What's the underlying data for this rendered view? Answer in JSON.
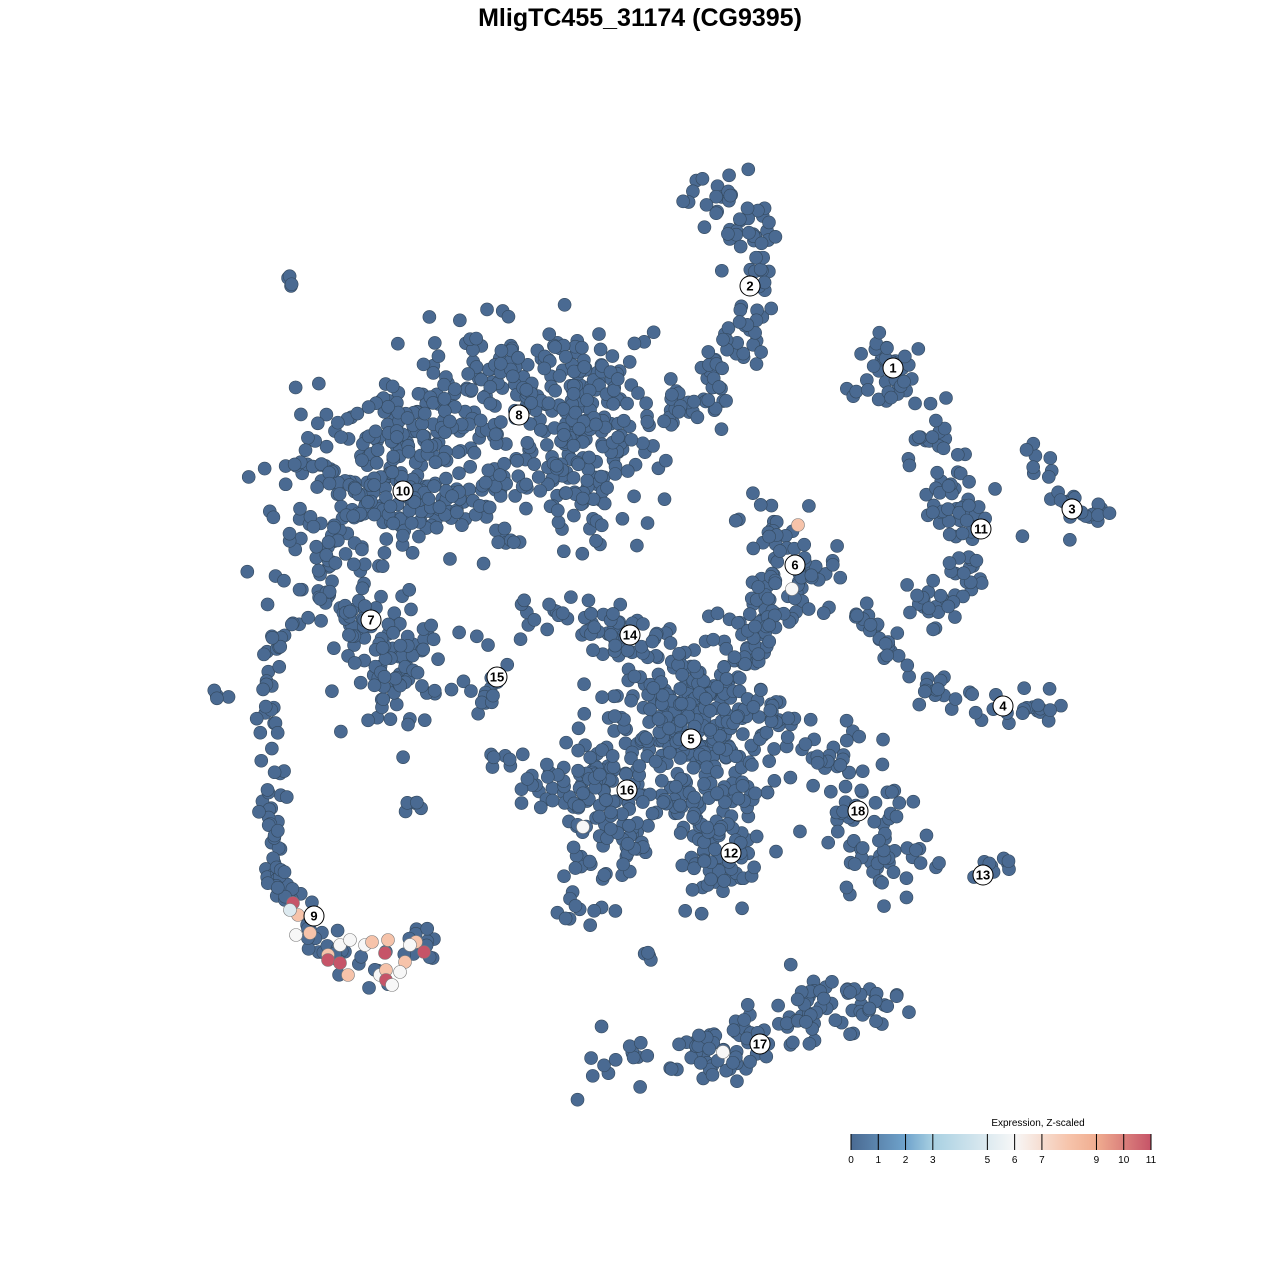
{
  "chart_data": {
    "type": "scatter",
    "title": "MligTC455_31174 (CG9395)",
    "xlabel": "",
    "ylabel": "",
    "grid": false,
    "legend": {
      "title": "Expression, Z-scaled",
      "placement": "bottom-right",
      "ticks": [
        0,
        1,
        2,
        3,
        5,
        6,
        7,
        9,
        10,
        11
      ],
      "range": [
        0,
        11
      ],
      "colors": {
        "0": "#4a6a92",
        "2": "#6fa3cc",
        "3": "#a8d0e2",
        "6": "#f7f7f7",
        "8": "#f6c3aa",
        "9": "#f0ad90",
        "11": "#c65468"
      }
    },
    "base_color": "#4a6a92",
    "clusters": [
      {
        "label": "1",
        "label_pos": [
          25.3,
          27.2
        ],
        "n": 40,
        "spread": 1.8,
        "path": [
          [
            23.5,
            28.5
          ],
          [
            25,
            27
          ],
          [
            26.5,
            26.5
          ],
          [
            24,
            26
          ]
        ]
      },
      {
        "label": "2",
        "label_pos": [
          11,
          35.4
        ],
        "n": 120,
        "spread": 1.4,
        "path": [
          [
            5,
            44.5
          ],
          [
            10,
            43
          ],
          [
            12,
            39
          ],
          [
            11,
            34
          ],
          [
            9,
            29
          ],
          [
            7,
            25
          ],
          [
            2.5,
            22.5
          ]
        ]
      },
      {
        "label": "3",
        "label_pos": [
          43.2,
          13.1
        ],
        "n": 30,
        "spread": 0.9,
        "path": [
          [
            39,
            19
          ],
          [
            41,
            16.5
          ],
          [
            43.5,
            13
          ],
          [
            46.5,
            12.2
          ]
        ]
      },
      {
        "label": "4",
        "label_pos": [
          36.3,
          -6.6
        ],
        "n": 60,
        "spread": 0.9,
        "path": [
          [
            22,
            3
          ],
          [
            24.5,
            -1
          ],
          [
            30,
            -5
          ],
          [
            36,
            -7
          ],
          [
            41.5,
            -6.8
          ]
        ]
      },
      {
        "label": "5",
        "label_pos": [
          5.1,
          -9.9
        ],
        "n": 320,
        "spread": 4,
        "path": [
          [
            3,
            -6
          ],
          [
            5,
            -9
          ],
          [
            7,
            -12
          ]
        ]
      },
      {
        "label": "6",
        "label_pos": [
          15.5,
          7.5
        ],
        "n": 75,
        "spread": 1.8,
        "path": [
          [
            12,
            11.5
          ],
          [
            15,
            10
          ],
          [
            18,
            7.5
          ],
          [
            15,
            5
          ],
          [
            11,
            4
          ],
          [
            12,
            0
          ]
        ]
      },
      {
        "label": "7",
        "label_pos": [
          -26.9,
          2
        ],
        "n": 160,
        "spread": 2.5,
        "path": [
          [
            -34,
            8
          ],
          [
            -29,
            4
          ],
          [
            -25,
            -1
          ],
          [
            -24,
            -6
          ]
        ]
      },
      {
        "label": "8",
        "label_pos": [
          -12.1,
          22.5
        ],
        "n": 460,
        "spread": 3.2,
        "path": [
          [
            -33,
            15
          ],
          [
            -24,
            20
          ],
          [
            -16,
            24.5
          ],
          [
            -8,
            27
          ],
          [
            -4,
            22
          ],
          [
            -5,
            13
          ]
        ]
      },
      {
        "label": "9",
        "label_pos": [
          -32.6,
          -27.6
        ],
        "n": 40,
        "spread": 1.1,
        "path": [
          [
            -35,
            -27
          ],
          [
            -31,
            -31
          ],
          [
            -26,
            -33
          ],
          [
            -21.5,
            -30
          ]
        ]
      },
      {
        "label": "10",
        "label_pos": [
          -23.7,
          14.9
        ],
        "n": 160,
        "spread": 2.5,
        "path": [
          [
            -29,
            12
          ],
          [
            -20,
            14
          ],
          [
            -8,
            16
          ]
        ]
      },
      {
        "label": "11",
        "label_pos": [
          34.1,
          11.1
        ],
        "n": 95,
        "spread": 1.4,
        "path": [
          [
            29,
            20.5
          ],
          [
            31,
            17
          ],
          [
            30,
            13
          ],
          [
            33.5,
            11
          ],
          [
            32,
            7
          ],
          [
            30.5,
            4
          ],
          [
            27.5,
            2
          ]
        ]
      },
      {
        "label": "12",
        "label_pos": [
          9.1,
          -21.3
        ],
        "n": 80,
        "spread": 2,
        "path": [
          [
            6,
            -17
          ],
          [
            9,
            -21
          ],
          [
            7,
            -24
          ]
        ]
      },
      {
        "label": "13",
        "label_pos": [
          34.3,
          -23.5
        ],
        "n": 12,
        "spread": 0.6,
        "path": [
          [
            32,
            -24
          ],
          [
            37,
            -22
          ]
        ]
      },
      {
        "label": "14",
        "label_pos": [
          -1,
          0.5
        ],
        "n": 55,
        "spread": 1.2,
        "path": [
          [
            -11,
            3
          ],
          [
            -4,
            2
          ],
          [
            -1.5,
            0
          ],
          [
            2.5,
            0
          ]
        ]
      },
      {
        "label": "15",
        "label_pos": [
          -14.3,
          -3.7
        ],
        "n": 16,
        "spread": 0.6,
        "path": [
          [
            -18,
            1.5
          ],
          [
            -15,
            -1
          ],
          [
            -14.5,
            -5
          ],
          [
            -16.5,
            -7
          ]
        ]
      },
      {
        "label": "16",
        "label_pos": [
          -1.3,
          -15
        ],
        "n": 120,
        "spread": 2,
        "path": [
          [
            -10,
            -16
          ],
          [
            -4,
            -14
          ],
          [
            -1,
            -19
          ],
          [
            -5,
            -23
          ]
        ]
      },
      {
        "label": "17",
        "label_pos": [
          12,
          -40.4
        ],
        "n": 135,
        "spread": 1.5,
        "path": [
          [
            -6,
            -42.5
          ],
          [
            6,
            -42
          ],
          [
            12,
            -39
          ],
          [
            19,
            -36
          ],
          [
            25,
            -37
          ]
        ]
      },
      {
        "label": "18",
        "label_pos": [
          21.8,
          -17.1
        ],
        "n": 90,
        "spread": 1.8,
        "path": [
          [
            17,
            -11
          ],
          [
            22,
            -13
          ],
          [
            21,
            -19
          ],
          [
            24,
            -24
          ],
          [
            26.5,
            -19
          ]
        ]
      },
      {
        "label": "",
        "n": 70,
        "spread": 0.6,
        "path": [
          [
            -36,
            2
          ],
          [
            -37,
            -6
          ],
          [
            -37,
            -16
          ],
          [
            -36.5,
            -23
          ],
          [
            -35,
            -26
          ]
        ]
      },
      {
        "label": "",
        "n": 40,
        "spread": 1.4,
        "path": [
          [
            10,
            -2
          ],
          [
            15,
            3
          ]
        ]
      },
      {
        "label": "",
        "n": 25,
        "spread": 1.4,
        "path": [
          [
            12,
            -7
          ],
          [
            15,
            -9
          ]
        ]
      },
      {
        "label": "",
        "n": 4,
        "spread": 0.4,
        "path": [
          [
            -35,
            36.5
          ],
          [
            -34.5,
            36
          ]
        ]
      },
      {
        "label": "",
        "n": 4,
        "spread": 0.4,
        "path": [
          [
            -42,
            -5.5
          ],
          [
            -41.5,
            -4.5
          ]
        ]
      },
      {
        "label": "",
        "n": 5,
        "spread": 0.5,
        "path": [
          [
            -23,
            -16.5
          ]
        ]
      },
      {
        "label": "",
        "n": 4,
        "spread": 0.4,
        "path": [
          [
            0.5,
            -31
          ]
        ]
      },
      {
        "label": "",
        "n": 10,
        "spread": 0.6,
        "path": [
          [
            -8,
            -27.5
          ],
          [
            -2,
            -26.5
          ]
        ]
      },
      {
        "label": "",
        "n": 6,
        "spread": 0.6,
        "path": [
          [
            -15,
            -12
          ],
          [
            -12,
            -12
          ]
        ]
      },
      {
        "label": "",
        "n": 5,
        "spread": 0.5,
        "path": [
          [
            -14,
            9.5
          ],
          [
            -12,
            10
          ]
        ]
      },
      {
        "label": "",
        "n": 1,
        "spread": 0,
        "path": [
          [
            30.6,
            24.2
          ]
        ]
      }
    ],
    "expressing_points": [
      [
        -34.7,
        -26.3,
        11
      ],
      [
        -34.2,
        -27.5,
        8
      ],
      [
        -35.0,
        -27.0,
        5
      ],
      [
        -33.0,
        -29.3,
        8
      ],
      [
        -34.4,
        -29.5,
        6
      ],
      [
        -31.2,
        -31.5,
        8
      ],
      [
        -31.2,
        -32.0,
        11
      ],
      [
        -30.0,
        -32.3,
        11
      ],
      [
        -29.2,
        -33.5,
        8
      ],
      [
        -30.0,
        -30.5,
        6
      ],
      [
        -29.0,
        -30.0,
        6
      ],
      [
        -27.5,
        -30.5,
        6
      ],
      [
        -26.8,
        -30.2,
        8
      ],
      [
        -25.2,
        -30.0,
        8
      ],
      [
        -25.5,
        -31.3,
        11
      ],
      [
        -26.0,
        -33.5,
        6
      ],
      [
        -25.4,
        -33.0,
        8
      ],
      [
        -25.4,
        -34.0,
        11
      ],
      [
        -24.8,
        -34.5,
        6
      ],
      [
        -23.5,
        -32.2,
        8
      ],
      [
        -22.4,
        -30.2,
        8
      ],
      [
        -21.6,
        -31.2,
        11
      ],
      [
        -24.0,
        -33.2,
        6
      ],
      [
        -23.0,
        -30.5,
        6
      ],
      [
        15.8,
        11.5,
        8
      ],
      [
        15.2,
        5.1,
        6
      ],
      [
        -5.7,
        -18.7,
        6
      ],
      [
        8.3,
        -41.2,
        6
      ]
    ]
  }
}
